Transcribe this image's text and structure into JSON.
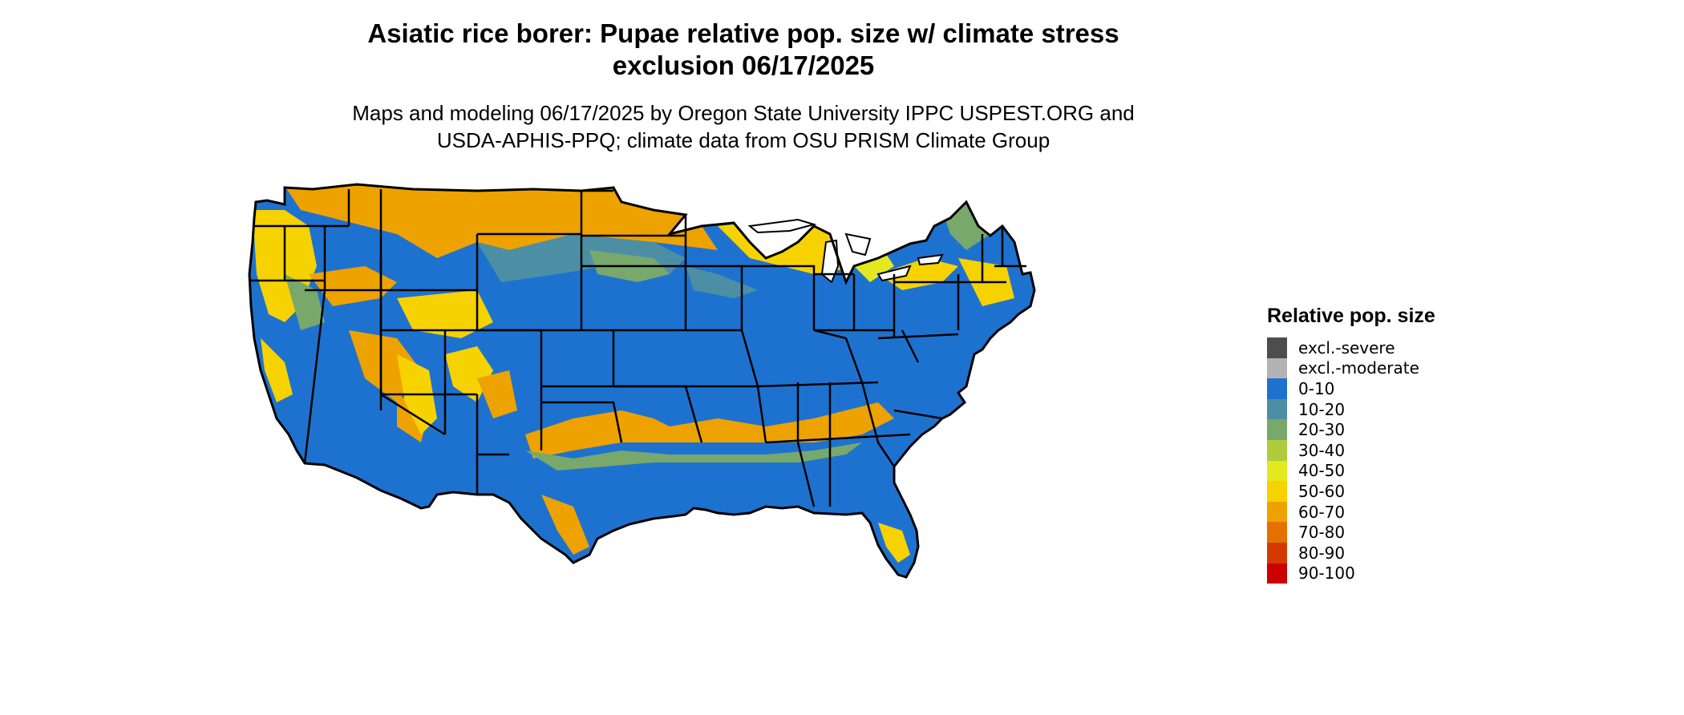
{
  "title_line1": "Asiatic rice borer: Pupae relative pop. size w/ climate stress",
  "title_line2": "exclusion 06/17/2025",
  "subtitle_line1": "Maps and modeling 06/17/2025 by Oregon State University IPPC USPEST.ORG and",
  "subtitle_line2": "USDA-APHIS-PPQ; climate data from OSU PRISM Climate Group",
  "legend": {
    "title": "Relative pop. size",
    "items": [
      {
        "label": "excl.-severe",
        "color": "#4d4d4d"
      },
      {
        "label": "excl.-moderate",
        "color": "#b3b3b3"
      },
      {
        "label": "0-10",
        "color": "#1e72cf"
      },
      {
        "label": "10-20",
        "color": "#4c8fa5"
      },
      {
        "label": "20-30",
        "color": "#78a86c"
      },
      {
        "label": "30-40",
        "color": "#b0cc3c"
      },
      {
        "label": "40-50",
        "color": "#e4e81e"
      },
      {
        "label": "50-60",
        "color": "#f6d200"
      },
      {
        "label": "60-70",
        "color": "#eea200"
      },
      {
        "label": "70-80",
        "color": "#e47000"
      },
      {
        "label": "80-90",
        "color": "#d43a00"
      },
      {
        "label": "90-100",
        "color": "#cc0000"
      }
    ]
  }
}
